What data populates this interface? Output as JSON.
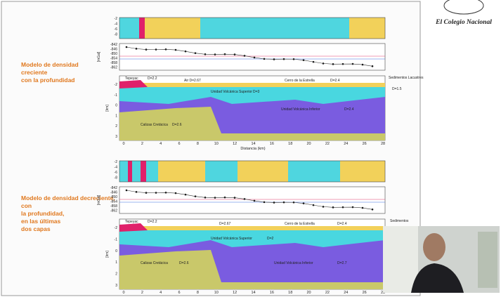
{
  "logo": {
    "title": "El Colegio Nacional"
  },
  "models": [
    {
      "caption": "Modelo de densidad creciente con la profundidad",
      "labels": [
        "Tepeyac",
        "D=2.2",
        "Air D=2.67",
        "Cerro de la Estrella",
        "D=2.4",
        "Sedimentos Lacustres",
        "D=1.5",
        "Unidad Volcánica Superior",
        "D=3",
        "Unidad Volcánica Inferior",
        "D=2.4",
        "Calizas Cretácica",
        "D=2.6"
      ],
      "x_axis_title": "Distancia (km)"
    },
    {
      "caption": "Modelo de densidad decreciente, con la profundidad, en las últimas dos capas",
      "labels": [
        "Tepeyac",
        "D=2.2",
        "D=2.67",
        "Cerro de la Estrella",
        "D=2.4",
        "Sedimentos",
        "Unidad Volcánica Superior",
        "D=2",
        "Unidad Volcánica Inferior",
        "D=2.7",
        "Calizas Cretácica",
        "D=2.6"
      ]
    }
  ],
  "x_ticks": [
    "0",
    "2",
    "4",
    "6",
    "8",
    "10",
    "12",
    "14",
    "16",
    "18",
    "20",
    "22",
    "24",
    "26",
    "28"
  ],
  "depth_ticks": [
    "-2",
    "-1",
    "0",
    "1",
    "2",
    "3"
  ],
  "depth_unit": "[km]",
  "gravity_unit": "[mGal]",
  "gravity_ticks": [
    "-842",
    "-846",
    "-850",
    "-854",
    "-858",
    "-862"
  ],
  "strip_ticks": [
    "-2",
    "-4",
    "-6",
    "-8"
  ]
}
